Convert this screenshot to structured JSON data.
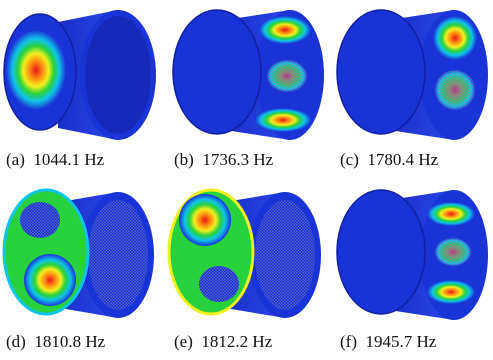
{
  "figure": {
    "panels": [
      {
        "label": "(a)",
        "frequency": "1044.1 Hz"
      },
      {
        "label": "(b)",
        "frequency": "1736.3 Hz"
      },
      {
        "label": "(c)",
        "frequency": "1780.4 Hz"
      },
      {
        "label": "(d)",
        "frequency": "1810.8 Hz"
      },
      {
        "label": "(e)",
        "frequency": "1812.2 Hz"
      },
      {
        "label": "(f)",
        "frequency": "1945.7 Hz"
      }
    ],
    "colors": {
      "base_blue": "#1a33d6",
      "dark_blue": "#0a1a9a",
      "cyan": "#10c4e8",
      "green": "#28d23c",
      "yellow": "#f2f01e",
      "orange": "#ff8a10",
      "red": "#e8141a"
    }
  }
}
